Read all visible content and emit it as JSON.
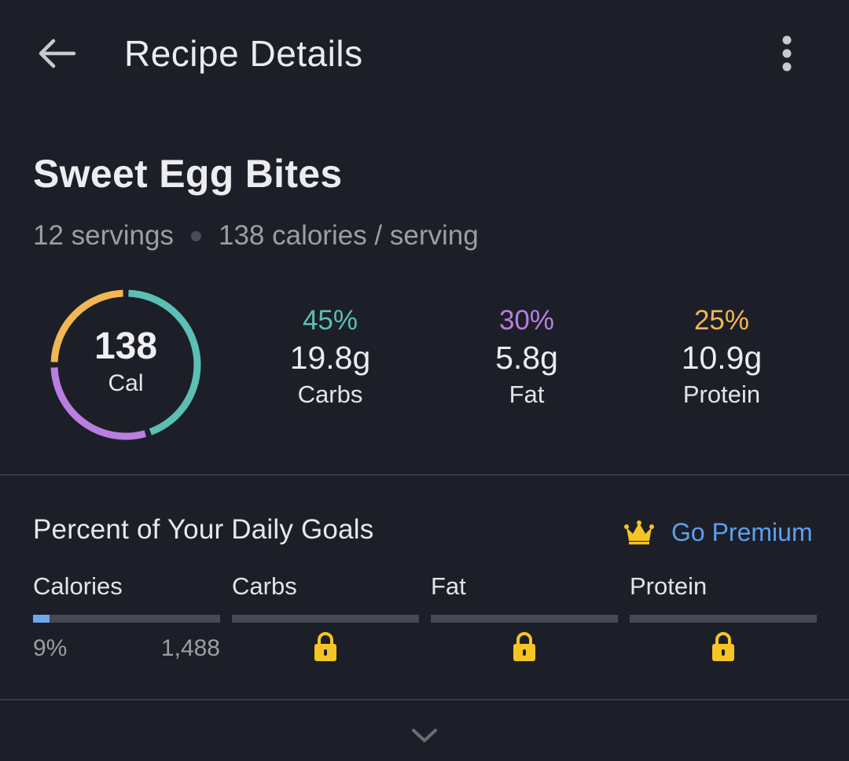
{
  "appbar": {
    "title": "Recipe Details",
    "back_icon": "arrow-left-icon",
    "menu_icon": "more-vert-icon"
  },
  "recipe": {
    "name": "Sweet Egg Bites",
    "servings": "12 servings",
    "calories_per_serving": "138 calories / serving"
  },
  "calorie_ring": {
    "value": "138",
    "unit": "Cal",
    "segments": [
      {
        "macro": "Carbs",
        "fraction": 0.45,
        "color": "#5bbfb5"
      },
      {
        "macro": "Fat",
        "fraction": 0.3,
        "color": "#b97ee0"
      },
      {
        "macro": "Protein",
        "fraction": 0.25,
        "color": "#f2b654"
      }
    ]
  },
  "macros": [
    {
      "pct": "45%",
      "grams": "19.8g",
      "name": "Carbs",
      "color": "#5bbfb5"
    },
    {
      "pct": "30%",
      "grams": "5.8g",
      "name": "Fat",
      "color": "#b97ee0"
    },
    {
      "pct": "25%",
      "grams": "10.9g",
      "name": "Protein",
      "color": "#f2b654"
    }
  ],
  "daily_goals": {
    "title": "Percent of Your Daily Goals",
    "premium_label": "Go Premium",
    "premium_icon": "crown-icon",
    "calories": {
      "name": "Calories",
      "pct": "9%",
      "target": "1,488",
      "progress": 0.09
    },
    "carbs": {
      "name": "Carbs",
      "locked": true
    },
    "fat": {
      "name": "Fat",
      "locked": true
    },
    "protein": {
      "name": "Protein",
      "locked": true
    }
  },
  "expand_icon": "chevron-down-icon",
  "colors": {
    "background": "#1d1f28",
    "accent_blue": "#5d9ff0",
    "lock_yellow": "#f5c524",
    "progress_fill": "#6ea8ec"
  }
}
